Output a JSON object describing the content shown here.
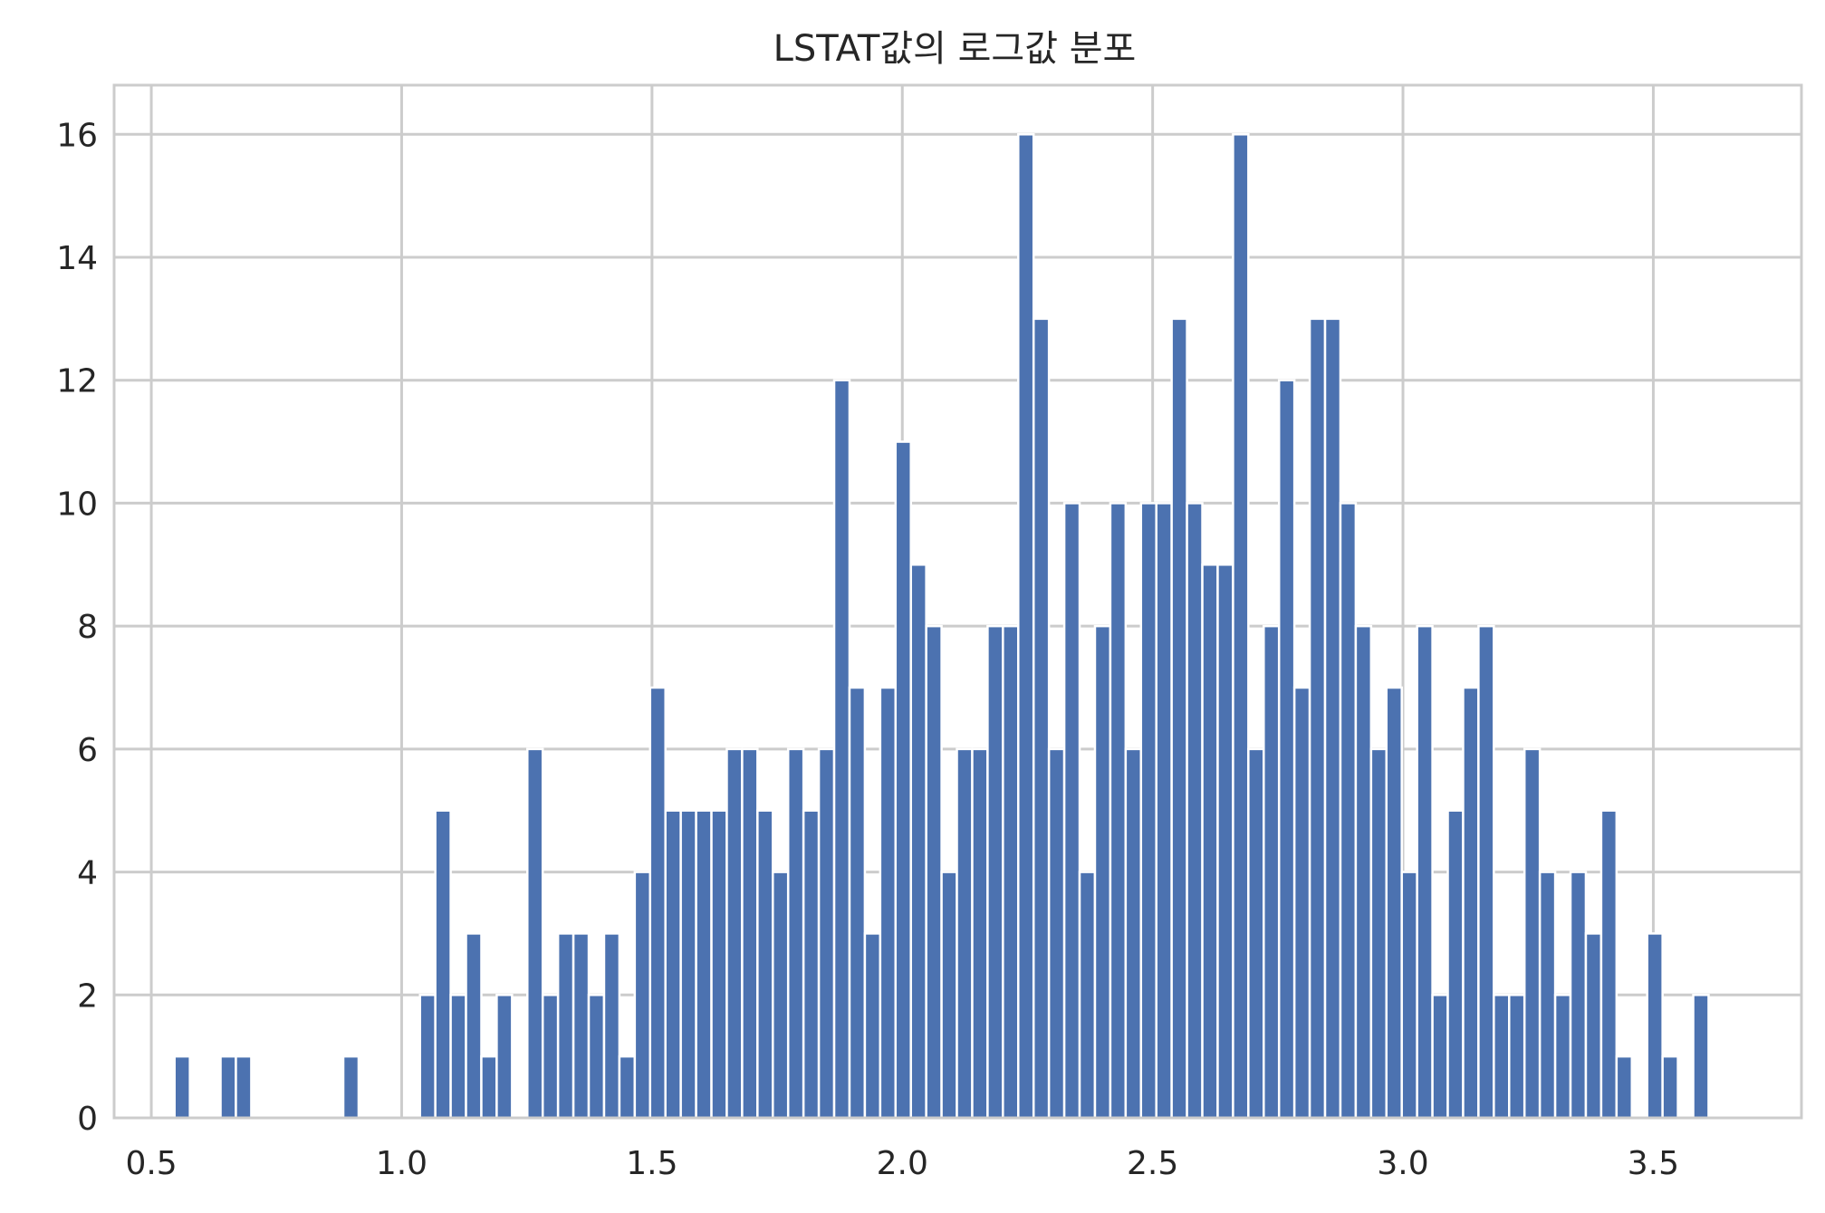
{
  "chart_data": {
    "type": "bar",
    "title": "LSTAT값의 로그값 분포",
    "xlabel": "",
    "ylabel": "",
    "xlim": [
      0.4257,
      3.7959
    ],
    "ylim": [
      0,
      16.8
    ],
    "xticks": [
      "0.5",
      "1.0",
      "1.5",
      "2.0",
      "2.5",
      "3.0",
      "3.5"
    ],
    "xtick_values": [
      0.5,
      1.0,
      1.5,
      2.0,
      2.5,
      3.0,
      3.5
    ],
    "yticks": [
      "0",
      "2",
      "4",
      "6",
      "8",
      "10",
      "12",
      "14",
      "16"
    ],
    "ytick_values": [
      0,
      2,
      4,
      6,
      8,
      10,
      12,
      14,
      16
    ],
    "grid": true,
    "bin_start": 0.5464,
    "bin_width": 0.03064,
    "counts": [
      1,
      0,
      0,
      1,
      1,
      0,
      0,
      0,
      0,
      0,
      0,
      1,
      0,
      0,
      0,
      0,
      2,
      5,
      2,
      3,
      1,
      2,
      0,
      6,
      2,
      3,
      3,
      2,
      3,
      1,
      4,
      7,
      5,
      5,
      5,
      5,
      6,
      6,
      5,
      4,
      6,
      5,
      6,
      12,
      7,
      3,
      7,
      11,
      9,
      8,
      4,
      6,
      6,
      8,
      8,
      16,
      13,
      6,
      10,
      4,
      8,
      10,
      6,
      10,
      10,
      13,
      10,
      9,
      9,
      16,
      6,
      8,
      12,
      7,
      13,
      13,
      10,
      8,
      6,
      7,
      4,
      8,
      2,
      5,
      7,
      8,
      2,
      2,
      6,
      4,
      2,
      4,
      3,
      5,
      1,
      0,
      3,
      1,
      0,
      2
    ],
    "bar_color": "#4c72b0",
    "grid_color": "#cccccc"
  }
}
